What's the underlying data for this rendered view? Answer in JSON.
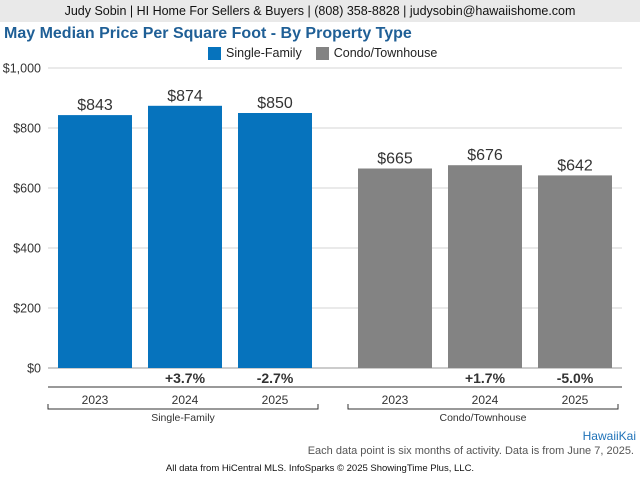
{
  "header": {
    "contact_line": "Judy Sobin | HI Home For Sellers & Buyers | (808) 358-8828 | judysobin@hawaiishome.com"
  },
  "chart_data": {
    "type": "bar",
    "title": "May Median Price Per Square Foot - By Property Type",
    "ylim": [
      0,
      1000
    ],
    "yticks": [
      0,
      200,
      400,
      600,
      800,
      1000
    ],
    "ytick_labels": [
      "$0",
      "$200",
      "$400",
      "$600",
      "$800",
      "$1,000"
    ],
    "grid": true,
    "legend": "top",
    "groups": [
      {
        "name": "Single-Family",
        "color": "#0673bd",
        "categories": [
          "2023",
          "2024",
          "2025"
        ],
        "values": [
          843,
          874,
          850
        ],
        "value_labels": [
          "$843",
          "$874",
          "$850"
        ],
        "changes": [
          "",
          "+3.7%",
          "-2.7%"
        ]
      },
      {
        "name": "Condo/Townhouse",
        "color": "#838383",
        "categories": [
          "2023",
          "2024",
          "2025"
        ],
        "values": [
          665,
          676,
          642
        ],
        "value_labels": [
          "$665",
          "$676",
          "$642"
        ],
        "changes": [
          "",
          "+1.7%",
          "-5.0%"
        ]
      }
    ]
  },
  "area_label": "HawaiiKai",
  "footnote": "Each data point is six months of activity. Data is from June 7, 2025.",
  "source": "All data from HiCentral MLS. InfoSparks © 2025 ShowingTime Plus, LLC."
}
